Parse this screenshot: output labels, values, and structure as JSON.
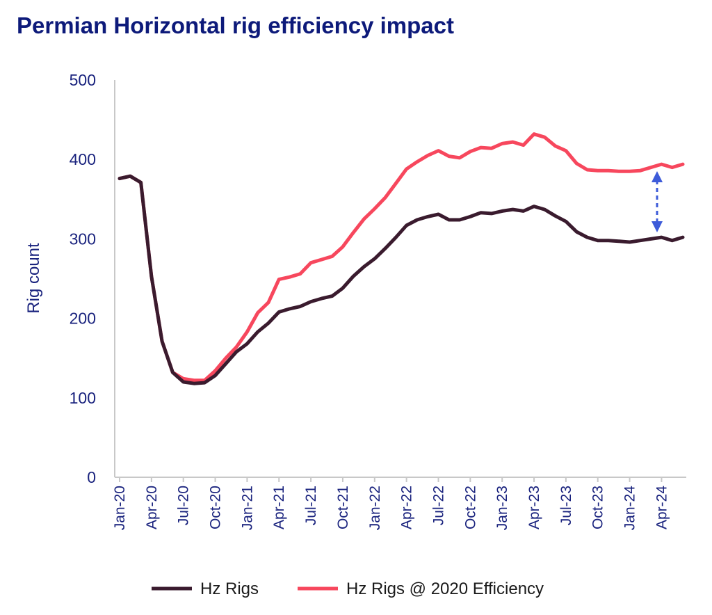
{
  "chart_data": {
    "type": "line",
    "title": "Permian Horizontal rig efficiency impact",
    "xlabel": "",
    "ylabel": "Rig count",
    "ylim": [
      0,
      500
    ],
    "yticks": [
      0,
      100,
      200,
      300,
      400,
      500
    ],
    "xtick_labels": [
      "Jan-20",
      "Apr-20",
      "Jul-20",
      "Oct-20",
      "Jan-21",
      "Apr-21",
      "Jul-21",
      "Oct-21",
      "Jan-22",
      "Apr-22",
      "Jul-22",
      "Oct-22",
      "Jan-23",
      "Apr-23",
      "Jul-23",
      "Oct-23",
      "Jan-24",
      "Apr-24"
    ],
    "x_start": "Jan-20",
    "x_end": "Jun-24",
    "grid": false,
    "legend_position": "bottom",
    "annotation": "double-headed arrow marking the gap between the two series",
    "series": [
      {
        "name": "Hz Rigs",
        "color": "#3a1b2e",
        "values": [
          376,
          379,
          371,
          253,
          171,
          132,
          120,
          118,
          119,
          128,
          143,
          158,
          168,
          183,
          194,
          208,
          212,
          215,
          221,
          225,
          228,
          238,
          253,
          265,
          275,
          288,
          302,
          317,
          324,
          328,
          331,
          324,
          324,
          328,
          333,
          332,
          335,
          337,
          335,
          341,
          337,
          329,
          322,
          309,
          302,
          298,
          298,
          297,
          296,
          298,
          300,
          302,
          298,
          302
        ]
      },
      {
        "name": "Hz Rigs @ 2020 Efficiency",
        "color": "#f7475d",
        "values": [
          376,
          379,
          371,
          253,
          171,
          132,
          124,
          122,
          122,
          134,
          150,
          164,
          183,
          207,
          220,
          249,
          252,
          256,
          270,
          274,
          278,
          290,
          308,
          325,
          338,
          352,
          370,
          388,
          397,
          405,
          411,
          404,
          402,
          410,
          415,
          414,
          420,
          422,
          418,
          432,
          428,
          417,
          411,
          395,
          387,
          386,
          386,
          385,
          385,
          386,
          390,
          394,
          390,
          394
        ]
      }
    ]
  }
}
